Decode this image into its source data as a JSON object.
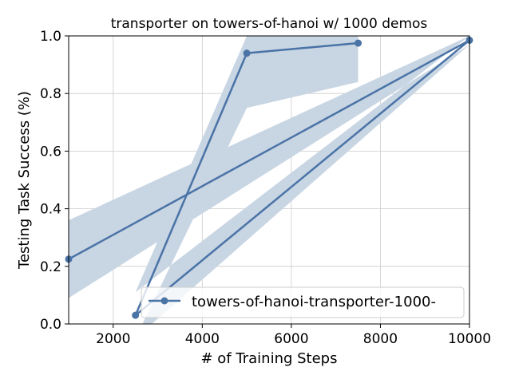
{
  "chart_data": {
    "type": "line",
    "title": "transporter on towers-of-hanoi w/ 1000 demos",
    "xlabel": "# of Training Steps",
    "ylabel": "Testing Task Success (%)",
    "xlim": [
      1000,
      10000
    ],
    "ylim": [
      0.0,
      1.0
    ],
    "xticks": [
      2000,
      4000,
      6000,
      8000,
      10000
    ],
    "yticks": [
      0.0,
      0.2,
      0.4,
      0.6,
      0.8,
      1.0
    ],
    "xtick_labels": [
      "2000",
      "4000",
      "6000",
      "8000",
      "10000"
    ],
    "ytick_labels": [
      "0.0",
      "0.2",
      "0.4",
      "0.6",
      "0.8",
      "1.0"
    ],
    "grid": true,
    "legend_position": "lower-right",
    "colors": {
      "line": "#4a73a6",
      "band": "#c8d5e3",
      "grid": "#cccccc"
    },
    "series": [
      {
        "name": "towers-of-hanoi-transporter-1000-",
        "x": [
          1000,
          10000,
          2500,
          5000,
          7500
        ],
        "y": [
          0.225,
          0.985,
          0.03,
          0.94,
          0.975
        ],
        "band_upper": [
          0.36,
          1.0,
          0.11,
          1.0,
          1.0
        ],
        "band_lower": [
          0.09,
          0.97,
          -0.05,
          0.75,
          0.84
        ]
      }
    ]
  }
}
